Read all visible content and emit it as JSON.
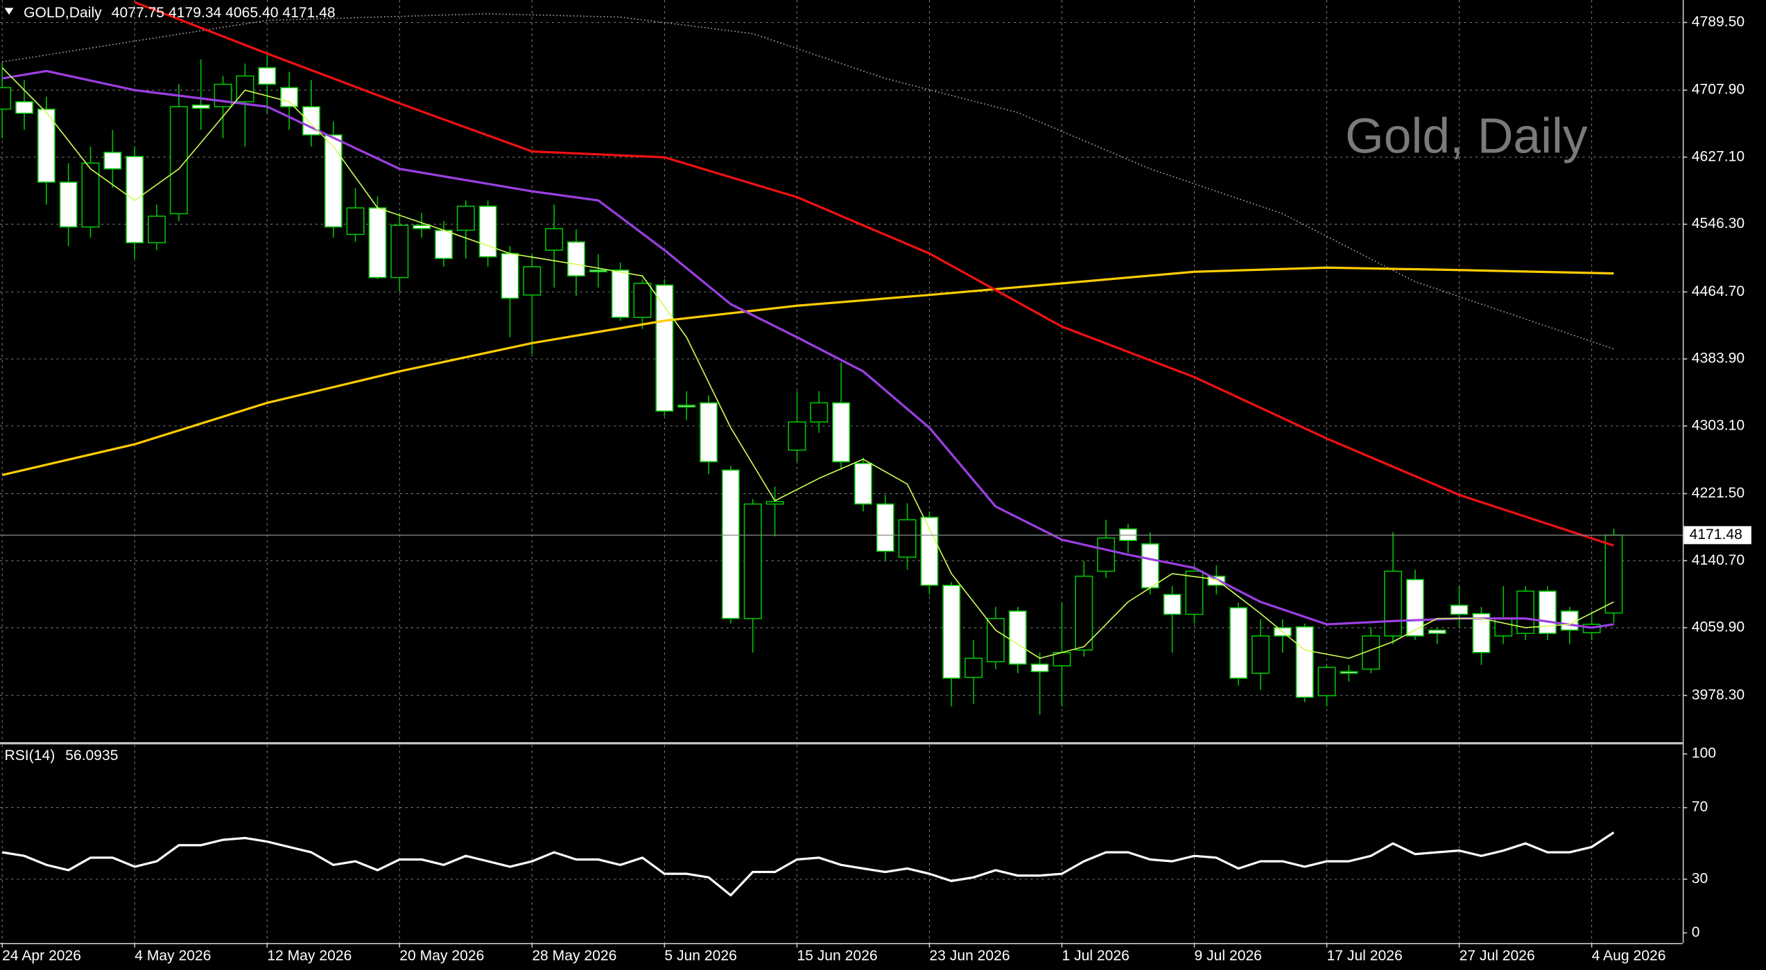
{
  "chart_data": {
    "type": "candlestick",
    "header": {
      "symbol": "GOLD,Daily",
      "quote": "4077.75 4179.34 4065.40 4171.48"
    },
    "watermark": "Gold, Daily",
    "xlim": [
      -0.1,
      76.12
    ],
    "xticks": [
      {
        "value": 0,
        "label": "24 Apr 2026"
      },
      {
        "value": 6,
        "label": "4 May 2026"
      },
      {
        "value": 12,
        "label": "12 May 2026"
      },
      {
        "value": 18,
        "label": "20 May 2026"
      },
      {
        "value": 24,
        "label": "28 May 2026"
      },
      {
        "value": 30,
        "label": "5 Jun 2026"
      },
      {
        "value": 36,
        "label": "15 Jun 2026"
      },
      {
        "value": 42,
        "label": "23 Jun 2026"
      },
      {
        "value": 48,
        "label": "1 Jul 2026"
      },
      {
        "value": 54,
        "label": "9 Jul 2026"
      },
      {
        "value": 60,
        "label": "17 Jul 2026"
      },
      {
        "value": 66,
        "label": "27 Jul 2026"
      },
      {
        "value": 72,
        "label": "4 Aug 2026"
      }
    ],
    "ylim": [
      3921.3,
      4816.6
    ],
    "yticks": [
      {
        "value": 4789.5,
        "label": "4789.50"
      },
      {
        "value": 4707.9,
        "label": "4707.90"
      },
      {
        "value": 4627.1,
        "label": "4627.10"
      },
      {
        "value": 4546.3,
        "label": "4546.30"
      },
      {
        "value": 4464.7,
        "label": "4464.70"
      },
      {
        "value": 4383.9,
        "label": "4383.90"
      },
      {
        "value": 4303.1,
        "label": "4303.10"
      },
      {
        "value": 4221.5,
        "label": "4221.50"
      },
      {
        "value": 4140.7,
        "label": "4140.70"
      },
      {
        "value": 4059.9,
        "label": "4059.90"
      },
      {
        "value": 3978.3,
        "label": "3978.30"
      }
    ],
    "grid": true,
    "candles": {
      "up_color": "#000000",
      "down_color": "#ffffff",
      "wick_color": "#00c000",
      "open": [
        4685,
        4694,
        4685,
        4597,
        4543,
        4633,
        4628,
        4524,
        4559,
        4690,
        4688,
        4694,
        4735,
        4711,
        4688,
        4654,
        4534,
        4566,
        4482,
        4545,
        4539,
        4539,
        4568,
        4511,
        4461,
        4515,
        4525,
        4491,
        4491,
        4434,
        4473,
        4328,
        4331,
        4250,
        4071,
        4209,
        4274,
        4308,
        4331,
        4258,
        4209,
        4145,
        4193,
        4111,
        4000,
        4019,
        4080,
        4016,
        4014,
        4033,
        4128,
        4179,
        4161,
        4100,
        4076,
        4122,
        4084,
        4005,
        4060,
        4061,
        3978,
        4007,
        4010,
        4050,
        4118,
        4057,
        4087,
        4077,
        4050,
        4053,
        4104,
        4080,
        4054,
        4077.75
      ],
      "high": [
        4740,
        4720,
        4700,
        4620,
        4640,
        4660,
        4640,
        4570,
        4715,
        4745,
        4725,
        4740,
        4750,
        4730,
        4720,
        4670,
        4590,
        4580,
        4560,
        4560,
        4550,
        4575,
        4575,
        4520,
        4510,
        4570,
        4540,
        4510,
        4500,
        4480,
        4480,
        4345,
        4340,
        4255,
        4215,
        4230,
        4345,
        4345,
        4380,
        4265,
        4220,
        4210,
        4200,
        4115,
        4045,
        4085,
        4085,
        4030,
        4090,
        4140,
        4190,
        4185,
        4175,
        4110,
        4135,
        4135,
        4090,
        4070,
        4070,
        4065,
        4015,
        4015,
        4060,
        4175,
        4130,
        4060,
        4110,
        4085,
        4110,
        4110,
        4110,
        4085,
        4080,
        4179.34
      ],
      "low": [
        4650,
        4660,
        4570,
        4520,
        4530,
        4590,
        4505,
        4515,
        4550,
        4660,
        4650,
        4640,
        4680,
        4660,
        4640,
        4530,
        4525,
        4480,
        4465,
        4530,
        4495,
        4505,
        4495,
        4410,
        4390,
        4470,
        4460,
        4470,
        4430,
        4420,
        4315,
        4310,
        4245,
        4065,
        4030,
        4170,
        4260,
        4295,
        4250,
        4200,
        4140,
        4130,
        4100,
        3965,
        3968,
        4010,
        4005,
        3955,
        3965,
        4025,
        4120,
        4150,
        4100,
        4030,
        4065,
        4100,
        3990,
        3985,
        4030,
        3970,
        3965,
        3995,
        4005,
        4040,
        4045,
        4040,
        4060,
        4015,
        4040,
        4045,
        4045,
        4040,
        4045,
        4065.4
      ],
      "close": [
        4711,
        4680,
        4597,
        4543,
        4620,
        4613,
        4524,
        4556,
        4688,
        4686,
        4715,
        4725,
        4715,
        4688,
        4654,
        4543,
        4566,
        4482,
        4545,
        4541,
        4505,
        4568,
        4507,
        4457,
        4495,
        4541,
        4484,
        4489,
        4434,
        4475,
        4321,
        4326,
        4260,
        4071,
        4209,
        4212,
        4308,
        4331,
        4260,
        4209,
        4152,
        4190,
        4111,
        3999,
        4023,
        4071,
        4016,
        4007,
        4030,
        4122,
        4168,
        4165,
        4108,
        4076,
        4128,
        4111,
        3999,
        4050,
        4050,
        3976,
        4012,
        4005,
        4050,
        4128,
        4050,
        4053,
        4076,
        4030,
        4071,
        4104,
        4053,
        4057,
        4064,
        4171.48
      ]
    },
    "overlays": [
      {
        "color": "#aaaaaa",
        "width": 1,
        "dash": true,
        "x": [
          0,
          12,
          22,
          28,
          34,
          40,
          46,
          52,
          58,
          64,
          73
        ],
        "values": [
          4742,
          4792,
          4800,
          4796,
          4776,
          4722,
          4681,
          4613,
          4559,
          4477,
          4396
        ]
      },
      {
        "color": "#ffcc00",
        "width": 2,
        "dash": false,
        "x": [
          0,
          6,
          12,
          18,
          24,
          30,
          36,
          42,
          48,
          54,
          60,
          66,
          73
        ],
        "values": [
          4244,
          4281,
          4331,
          4369,
          4403,
          4430,
          4448,
          4461,
          4475,
          4489,
          4494,
          4491,
          4487
        ]
      },
      {
        "color": "#ee1111",
        "width": 2,
        "dash": false,
        "x": [
          6,
          12,
          18,
          24,
          30,
          36,
          42,
          48,
          54,
          60,
          66,
          73
        ],
        "values": [
          4814,
          4752,
          4692,
          4634,
          4627,
          4579,
          4511,
          4423,
          4362,
          4288,
          4220,
          4159
        ]
      },
      {
        "color": "#9b3fe0",
        "width": 2,
        "dash": false,
        "x": [
          0,
          2,
          6,
          12,
          18,
          24,
          27,
          30,
          33,
          36,
          39,
          42,
          45,
          48,
          51,
          54,
          57,
          60,
          63,
          66,
          69,
          72,
          73
        ],
        "values": [
          4722,
          4731,
          4708,
          4688,
          4613,
          4586,
          4575,
          4515,
          4450,
          4410,
          4369,
          4301,
          4206,
          4166,
          4148,
          4132,
          4091,
          4064,
          4068,
          4071,
          4071,
          4060,
          4064
        ]
      },
      {
        "color": "#ccff55",
        "width": 1,
        "dash": false,
        "x": [
          0,
          2,
          4,
          6,
          8,
          11,
          13,
          15,
          17,
          20,
          23,
          26,
          29,
          31,
          33,
          35,
          37,
          39,
          41,
          43,
          45,
          47,
          49,
          51,
          53,
          55,
          57,
          59,
          61,
          63,
          65,
          67,
          69,
          71,
          73
        ],
        "values": [
          4735,
          4681,
          4613,
          4575,
          4613,
          4708,
          4694,
          4640,
          4566,
          4539,
          4511,
          4498,
          4484,
          4410,
          4301,
          4213,
          4240,
          4263,
          4233,
          4125,
          4057,
          4023,
          4037,
          4091,
          4125,
          4118,
          4077,
          4033,
          4023,
          4043,
          4071,
          4071,
          4060,
          4064,
          4091
        ]
      }
    ],
    "rsi": {
      "name": "RSI(14)",
      "color": "#ffffff",
      "ylim": [
        -5.66,
        105.03
      ],
      "yticks": [
        0,
        30,
        70,
        100
      ],
      "values": [
        45,
        43,
        38,
        35,
        42,
        42,
        37,
        40,
        49,
        49,
        52,
        53,
        51,
        48,
        45,
        38,
        40,
        35,
        41,
        41,
        38,
        43,
        40,
        37,
        40,
        45,
        41,
        41,
        38,
        42,
        33,
        33,
        31,
        21,
        34,
        34,
        41,
        42,
        38,
        36,
        34,
        36,
        33,
        29,
        31,
        35,
        32,
        32,
        33,
        40,
        45,
        45,
        41,
        40,
        43,
        42,
        36,
        40,
        40,
        37,
        40,
        40,
        43,
        50,
        44,
        45,
        46,
        43,
        46,
        50,
        45,
        45,
        48,
        56.0935
      ]
    }
  }
}
